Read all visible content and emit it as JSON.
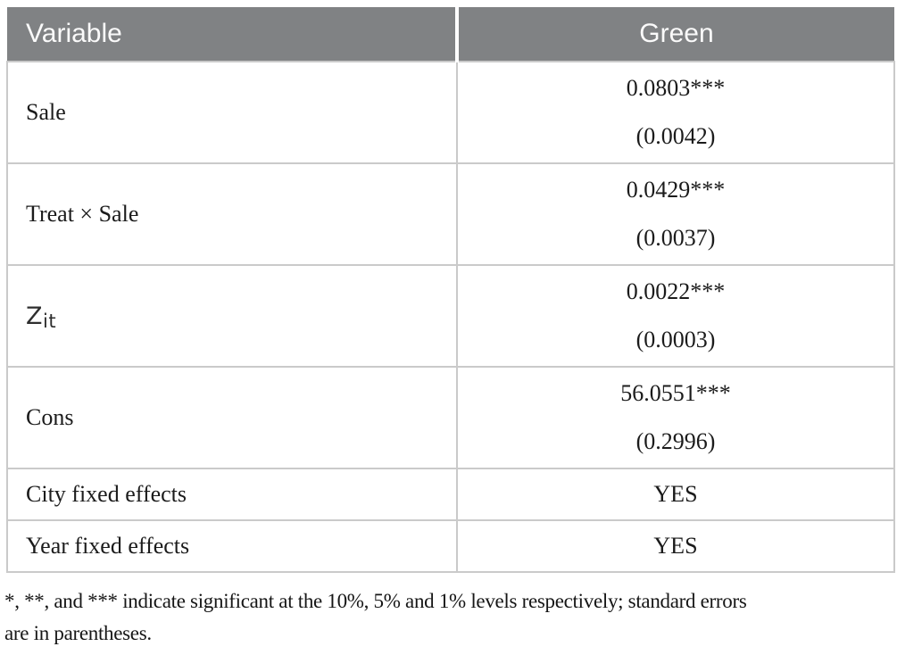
{
  "table": {
    "columns": [
      {
        "label": "Variable"
      },
      {
        "label": "Green"
      }
    ],
    "coef_rows": [
      {
        "label": "Sale",
        "estimate": "0.0803***",
        "se": "(0.0042)"
      },
      {
        "label": "Treat × Sale",
        "estimate": "0.0429***",
        "se": "(0.0037)"
      },
      {
        "label_base": "Z",
        "label_sub": "it",
        "estimate": "0.0022***",
        "se": "(0.0003)"
      },
      {
        "label": "Cons",
        "estimate": "56.0551***",
        "se": "(0.2996)"
      }
    ],
    "info_rows": [
      {
        "label": "City fixed effects",
        "value": "YES"
      },
      {
        "label": "Year fixed effects",
        "value": "YES"
      }
    ]
  },
  "footnote": {
    "line1": "*, **, and *** indicate significant at the 10%, 5% and 1% levels respectively; standard errors",
    "line2": "are in parentheses."
  },
  "colors": {
    "header_bg": "#808284",
    "header_text": "#fafafa",
    "body_text": "#1b1b1b",
    "border": "#cacaca"
  }
}
